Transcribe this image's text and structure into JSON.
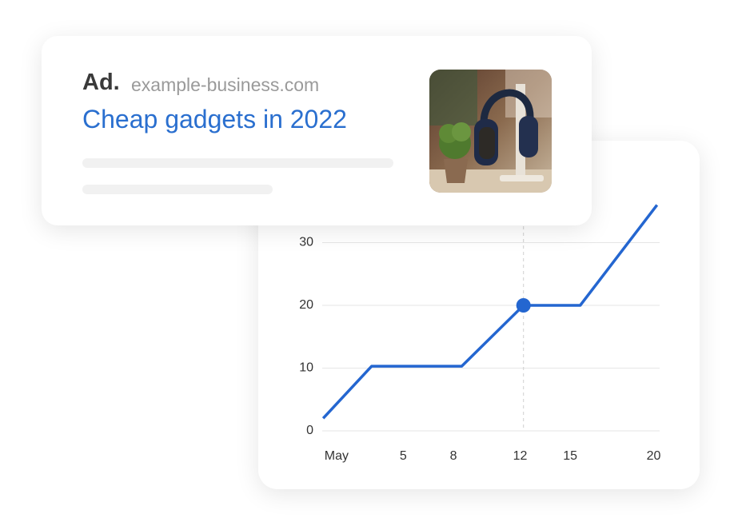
{
  "ad": {
    "label": "Ad.",
    "domain": "example-business.com",
    "title": "Cheap gadgets in 2022"
  },
  "chart_data": {
    "type": "line",
    "x": [
      0.2,
      3.1,
      8.5,
      12.2,
      15.6,
      20.2
    ],
    "values": [
      2,
      10.3,
      10.3,
      20,
      20,
      36
    ],
    "color": "#2466d0",
    "highlight_index": 3,
    "xlim": [
      0,
      20.5
    ],
    "xticks": [
      {
        "value": 1,
        "label": "May"
      },
      5,
      8,
      12,
      15,
      20
    ],
    "ylim": [
      0,
      40
    ],
    "yticks": [
      0,
      10,
      20,
      30
    ],
    "grid": true
  }
}
